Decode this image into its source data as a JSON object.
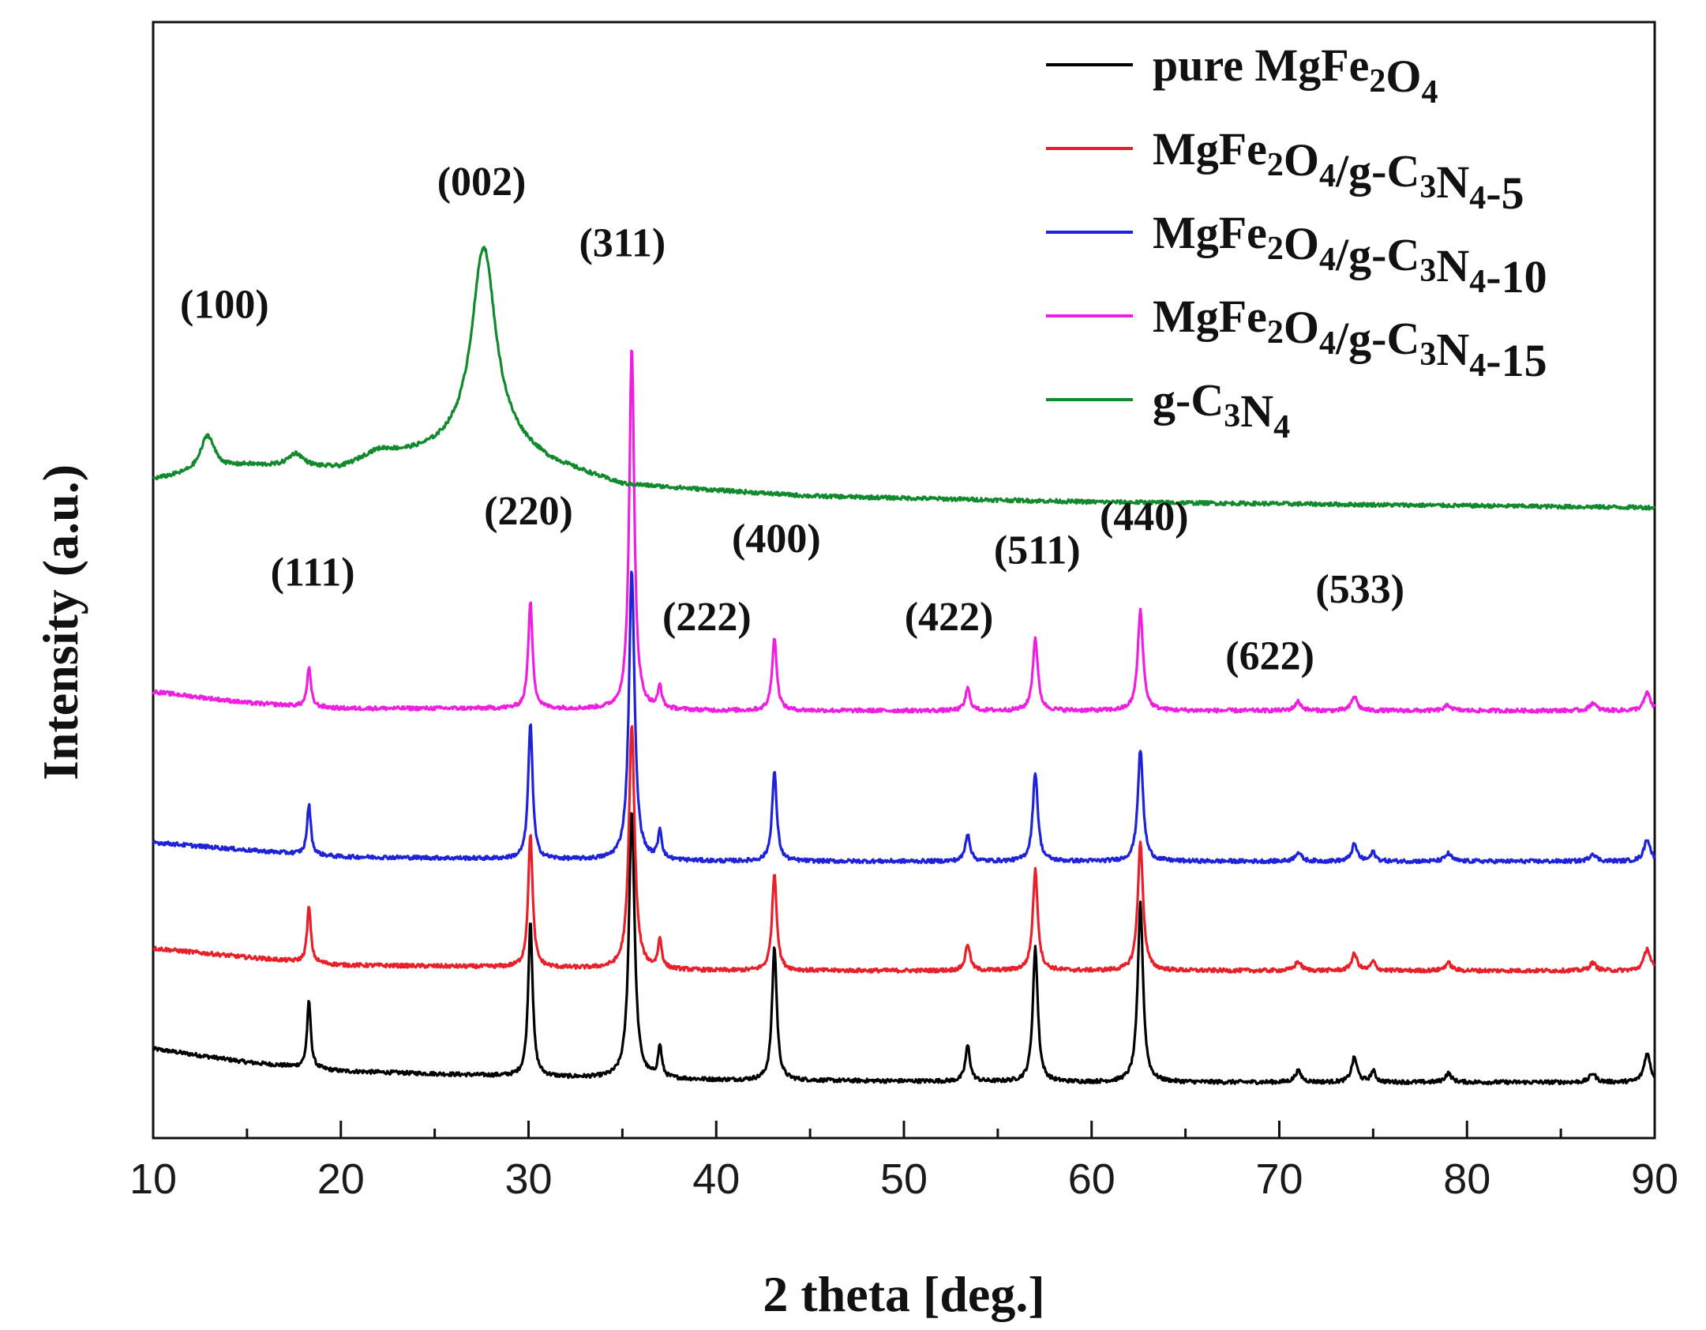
{
  "chart_data": {
    "type": "line",
    "xlabel": "2 theta [deg.]",
    "ylabel": "Intensity (a.u.)",
    "xlim": [
      10,
      90
    ],
    "ylim": [
      0,
      100
    ],
    "x_ticks": [
      10,
      20,
      30,
      40,
      50,
      60,
      70,
      80,
      90
    ],
    "x_tick_labels": [
      "10",
      "20",
      "30",
      "40",
      "50",
      "60",
      "70",
      "80",
      "90"
    ],
    "peak_labels": [
      {
        "text": "(100)",
        "x": 13.8,
        "y": 73.5
      },
      {
        "text": "(002)",
        "x": 27.5,
        "y": 84.5
      },
      {
        "text": "(311)",
        "x": 35.0,
        "y": 79.0
      },
      {
        "text": "(220)",
        "x": 30.0,
        "y": 55.0
      },
      {
        "text": "(111)",
        "x": 18.5,
        "y": 49.5
      },
      {
        "text": "(222)",
        "x": 39.5,
        "y": 45.5
      },
      {
        "text": "(400)",
        "x": 43.2,
        "y": 52.5
      },
      {
        "text": "(422)",
        "x": 52.4,
        "y": 45.5
      },
      {
        "text": "(511)",
        "x": 57.1,
        "y": 51.5
      },
      {
        "text": "(440)",
        "x": 62.8,
        "y": 54.5
      },
      {
        "text": "(622)",
        "x": 69.5,
        "y": 42.0
      },
      {
        "text": "(533)",
        "x": 74.3,
        "y": 48.0
      }
    ],
    "series": [
      {
        "name": "pure MgFe2O4",
        "label_main": "pure MgFe",
        "label_parts": [
          "pure MgFe",
          "2",
          "O",
          "4"
        ],
        "color": "#000000",
        "baseline": [
          [
            10,
            8.0
          ],
          [
            15,
            6.8
          ],
          [
            20,
            6.0
          ],
          [
            30,
            5.5
          ],
          [
            40,
            5.2
          ],
          [
            60,
            5.0
          ],
          [
            90,
            5.0
          ]
        ],
        "peaks": [
          [
            18.3,
            6.0,
            0.12
          ],
          [
            30.1,
            14.0,
            0.14
          ],
          [
            35.5,
            24.0,
            0.18
          ],
          [
            37.0,
            2.8,
            0.12
          ],
          [
            43.1,
            12.0,
            0.15
          ],
          [
            53.4,
            3.2,
            0.15
          ],
          [
            57.0,
            12.0,
            0.16
          ],
          [
            62.6,
            16.0,
            0.17
          ],
          [
            71.0,
            1.0,
            0.2
          ],
          [
            74.0,
            2.2,
            0.18
          ],
          [
            75.0,
            1.0,
            0.15
          ],
          [
            79.0,
            0.8,
            0.2
          ],
          [
            86.7,
            0.8,
            0.2
          ],
          [
            89.6,
            2.6,
            0.2
          ]
        ],
        "noise": 0.35
      },
      {
        "name": "MgFe2O4/g-C3N4-5",
        "label_parts": [
          "MgFe",
          "2",
          "O",
          "4",
          "/g-C",
          "3",
          "N",
          "4",
          "-5"
        ],
        "color": "#e8202a",
        "baseline": [
          [
            10,
            17.0
          ],
          [
            15,
            16.2
          ],
          [
            20,
            15.5
          ],
          [
            30,
            15.3
          ],
          [
            40,
            15.0
          ],
          [
            90,
            15.0
          ]
        ],
        "peaks": [
          [
            18.3,
            5.0,
            0.12
          ],
          [
            30.1,
            12.0,
            0.14
          ],
          [
            35.5,
            22.0,
            0.18
          ],
          [
            37.0,
            2.6,
            0.12
          ],
          [
            43.1,
            8.7,
            0.15
          ],
          [
            53.4,
            2.4,
            0.15
          ],
          [
            57.0,
            9.0,
            0.16
          ],
          [
            62.6,
            11.5,
            0.17
          ],
          [
            71.0,
            0.8,
            0.2
          ],
          [
            74.0,
            1.5,
            0.18
          ],
          [
            75.0,
            0.8,
            0.15
          ],
          [
            79.0,
            0.7,
            0.2
          ],
          [
            86.7,
            0.7,
            0.2
          ],
          [
            89.6,
            2.0,
            0.2
          ]
        ],
        "noise": 0.35
      },
      {
        "name": "MgFe2O4/g-C3N4-10",
        "label_parts": [
          "MgFe",
          "2",
          "O",
          "4",
          "/g-C",
          "3",
          "N",
          "4",
          "-10"
        ],
        "color": "#1e22d8",
        "baseline": [
          [
            10,
            26.5
          ],
          [
            15,
            25.8
          ],
          [
            20,
            25.2
          ],
          [
            30,
            25.0
          ],
          [
            40,
            24.8
          ],
          [
            90,
            24.8
          ]
        ],
        "peaks": [
          [
            18.3,
            4.5,
            0.12
          ],
          [
            30.1,
            12.3,
            0.14
          ],
          [
            35.5,
            26.0,
            0.18
          ],
          [
            37.0,
            2.6,
            0.12
          ],
          [
            43.1,
            8.0,
            0.15
          ],
          [
            53.4,
            2.5,
            0.15
          ],
          [
            57.0,
            8.0,
            0.16
          ],
          [
            62.6,
            10.0,
            0.17
          ],
          [
            71.0,
            0.8,
            0.2
          ],
          [
            74.0,
            1.5,
            0.18
          ],
          [
            75.0,
            0.8,
            0.15
          ],
          [
            79.0,
            0.7,
            0.2
          ],
          [
            86.7,
            0.7,
            0.2
          ],
          [
            89.6,
            2.0,
            0.2
          ]
        ],
        "noise": 0.35
      },
      {
        "name": "MgFe2O4/g-C3N4-15",
        "label_parts": [
          "MgFe",
          "2",
          "O",
          "4",
          "/g-C",
          "3",
          "N",
          "4",
          "-15"
        ],
        "color": "#f01ee0",
        "baseline": [
          [
            10,
            40.0
          ],
          [
            15,
            39.0
          ],
          [
            20,
            38.5
          ],
          [
            30,
            38.5
          ],
          [
            40,
            38.3
          ],
          [
            90,
            38.3
          ]
        ],
        "peaks": [
          [
            18.3,
            3.5,
            0.12
          ],
          [
            30.1,
            9.5,
            0.14
          ],
          [
            35.5,
            32.5,
            0.16
          ],
          [
            37.0,
            2.0,
            0.12
          ],
          [
            43.1,
            6.5,
            0.15
          ],
          [
            53.4,
            2.0,
            0.15
          ],
          [
            57.0,
            6.5,
            0.16
          ],
          [
            62.6,
            9.0,
            0.17
          ],
          [
            71.0,
            0.8,
            0.2
          ],
          [
            74.0,
            1.3,
            0.18
          ],
          [
            79.0,
            0.5,
            0.2
          ],
          [
            86.7,
            0.7,
            0.2
          ],
          [
            89.6,
            1.6,
            0.2
          ]
        ],
        "noise": 0.35
      },
      {
        "name": "g-C3N4",
        "label_parts": [
          "g-C",
          "3",
          "N",
          "4"
        ],
        "color": "#118a2e",
        "baseline": [
          [
            10,
            59.0
          ],
          [
            12,
            59.5
          ],
          [
            15,
            60.2
          ],
          [
            20,
            59.8
          ],
          [
            25,
            61.5
          ],
          [
            28,
            63.0
          ],
          [
            31,
            60.5
          ],
          [
            35,
            58.5
          ],
          [
            45,
            57.5
          ],
          [
            60,
            57.0
          ],
          [
            90,
            56.5
          ]
        ],
        "peaks": [
          [
            12.9,
            3.2,
            0.45
          ],
          [
            17.6,
            1.2,
            0.5
          ],
          [
            22.0,
            1.0,
            1.2
          ],
          [
            27.6,
            17.0,
            0.75
          ]
        ],
        "noise": 0.35
      }
    ]
  }
}
